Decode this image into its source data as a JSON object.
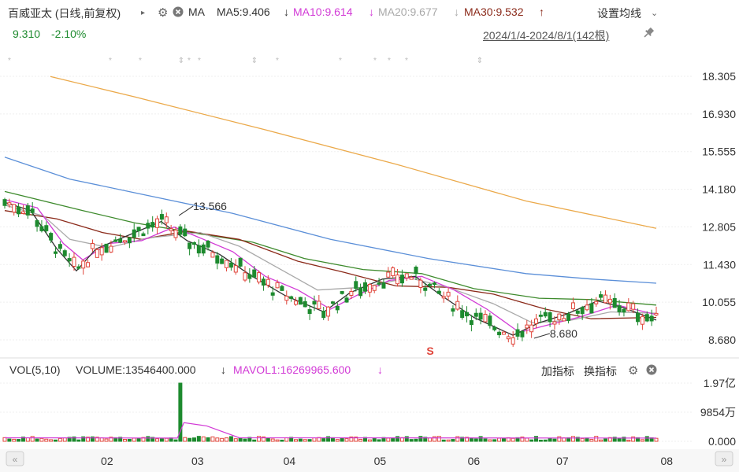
{
  "header": {
    "stock_name": "百威亚太 (日线,前复权)",
    "ma_label": "MA",
    "ma5": "MA5:9.406",
    "ma10": "MA10:9.614",
    "ma20": "MA20:9.677",
    "ma30": "MA30:9.532",
    "ma_settings_label": "设置均线",
    "price": "9.310",
    "change": "-2.10%",
    "range": "2024/1/4-2024/8/1(142根)"
  },
  "colors": {
    "up": "#e0453a",
    "down": "#1d8a2e",
    "ma5": "#333333",
    "ma10": "#d23ad6",
    "ma20": "#a9a9a9",
    "ma30": "#8b2a1a",
    "ma60": "#3d8a2c",
    "ma120": "#5b8fd8",
    "ma250": "#eba94a"
  },
  "chart_data": [
    {
      "type": "candlestick",
      "y_ticks": [
        "18.305",
        "16.930",
        "15.555",
        "14.180",
        "12.805",
        "11.430",
        "10.055",
        "8.680"
      ],
      "ylim": [
        8.68,
        18.305
      ],
      "x_ticks": [
        "02",
        "03",
        "04",
        "05",
        "06",
        "07",
        "08"
      ],
      "annotations": [
        {
          "label": "13.566",
          "value": 13.566
        },
        {
          "label": "8.680",
          "value": 8.68
        }
      ],
      "marker_label": "S",
      "series": [
        {
          "name": "MA250",
          "color": "#eba94a",
          "points": [
            [
              0.07,
              18.3
            ],
            [
              0.2,
              17.55
            ],
            [
              0.4,
              16.35
            ],
            [
              0.6,
              15.1
            ],
            [
              0.8,
              13.75
            ],
            [
              1.0,
              12.75
            ]
          ]
        },
        {
          "name": "MA120",
          "color": "#5b8fd8",
          "points": [
            [
              0.0,
              15.35
            ],
            [
              0.1,
              14.55
            ],
            [
              0.2,
              14.05
            ],
            [
              0.35,
              13.3
            ],
            [
              0.5,
              12.35
            ],
            [
              0.65,
              11.65
            ],
            [
              0.8,
              11.1
            ],
            [
              0.9,
              10.9
            ],
            [
              1.0,
              10.75
            ]
          ]
        },
        {
          "name": "MA60",
          "color": "#3d8a2c",
          "points": [
            [
              0.0,
              14.1
            ],
            [
              0.12,
              13.4
            ],
            [
              0.2,
              12.95
            ],
            [
              0.3,
              12.55
            ],
            [
              0.38,
              12.25
            ],
            [
              0.46,
              11.65
            ],
            [
              0.55,
              11.25
            ],
            [
              0.64,
              11.1
            ],
            [
              0.72,
              10.55
            ],
            [
              0.82,
              10.2
            ],
            [
              0.9,
              10.15
            ],
            [
              1.0,
              9.95
            ]
          ]
        },
        {
          "name": "MA30",
          "color": "#8b2a1a",
          "points": [
            [
              0.0,
              13.4
            ],
            [
              0.08,
              13.1
            ],
            [
              0.15,
              12.6
            ],
            [
              0.21,
              12.35
            ],
            [
              0.28,
              12.65
            ],
            [
              0.36,
              12.35
            ],
            [
              0.45,
              11.55
            ],
            [
              0.52,
              11.15
            ],
            [
              0.6,
              10.65
            ],
            [
              0.68,
              10.6
            ],
            [
              0.75,
              10.35
            ],
            [
              0.83,
              9.8
            ],
            [
              0.9,
              9.45
            ],
            [
              1.0,
              9.5
            ]
          ]
        },
        {
          "name": "MA20",
          "color": "#a9a9a9",
          "points": [
            [
              0.0,
              13.6
            ],
            [
              0.06,
              13.2
            ],
            [
              0.1,
              12.35
            ],
            [
              0.16,
              12.05
            ],
            [
              0.22,
              12.4
            ],
            [
              0.3,
              12.6
            ],
            [
              0.36,
              12.1
            ],
            [
              0.42,
              11.3
            ],
            [
              0.48,
              10.5
            ],
            [
              0.55,
              10.6
            ],
            [
              0.62,
              10.95
            ],
            [
              0.68,
              10.6
            ],
            [
              0.75,
              10.0
            ],
            [
              0.81,
              9.3
            ],
            [
              0.87,
              9.4
            ],
            [
              0.93,
              9.7
            ],
            [
              1.0,
              9.65
            ]
          ]
        },
        {
          "name": "MA10",
          "color": "#d23ad6",
          "points": [
            [
              0.0,
              13.8
            ],
            [
              0.05,
              13.5
            ],
            [
              0.09,
              12.2
            ],
            [
              0.12,
              11.6
            ],
            [
              0.16,
              12.2
            ],
            [
              0.21,
              12.3
            ],
            [
              0.26,
              12.8
            ],
            [
              0.3,
              12.4
            ],
            [
              0.35,
              11.9
            ],
            [
              0.4,
              11.0
            ],
            [
              0.45,
              10.5
            ],
            [
              0.5,
              9.8
            ],
            [
              0.54,
              10.3
            ],
            [
              0.59,
              10.85
            ],
            [
              0.64,
              11.0
            ],
            [
              0.69,
              10.5
            ],
            [
              0.74,
              9.8
            ],
            [
              0.79,
              8.95
            ],
            [
              0.83,
              9.2
            ],
            [
              0.88,
              9.5
            ],
            [
              0.94,
              9.95
            ],
            [
              1.0,
              9.6
            ]
          ]
        },
        {
          "name": "MA5",
          "color": "#333333",
          "points": [
            [
              0.0,
              13.7
            ],
            [
              0.04,
              13.4
            ],
            [
              0.08,
              12.0
            ],
            [
              0.11,
              11.2
            ],
            [
              0.14,
              12.0
            ],
            [
              0.19,
              12.5
            ],
            [
              0.24,
              13.0
            ],
            [
              0.28,
              12.3
            ],
            [
              0.33,
              11.8
            ],
            [
              0.38,
              11.0
            ],
            [
              0.43,
              10.3
            ],
            [
              0.49,
              9.7
            ],
            [
              0.53,
              10.4
            ],
            [
              0.58,
              10.9
            ],
            [
              0.63,
              11.0
            ],
            [
              0.67,
              10.3
            ],
            [
              0.72,
              9.5
            ],
            [
              0.78,
              8.85
            ],
            [
              0.82,
              9.3
            ],
            [
              0.86,
              9.6
            ],
            [
              0.91,
              10.1
            ],
            [
              0.95,
              9.85
            ],
            [
              1.0,
              9.4
            ]
          ]
        }
      ]
    },
    {
      "type": "bar",
      "title": "VOL(5,10)",
      "y_ticks": [
        "1.97亿",
        "9854万",
        "0.000"
      ],
      "ylim": [
        0,
        197000000
      ],
      "values": [
        13546400
      ]
    }
  ],
  "volume": {
    "title": "VOL(5,10)",
    "volume": "VOLUME:13546400.000",
    "mavol1": "MAVOL1:16269965.600",
    "add_indicator": "加指标",
    "switch_indicator": "换指标"
  }
}
